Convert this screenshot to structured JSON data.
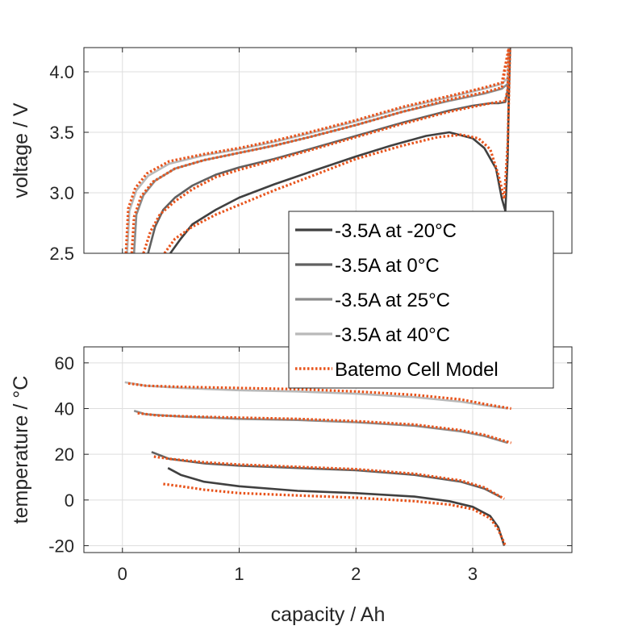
{
  "chart_data": [
    {
      "type": "line",
      "ylabel": "voltage / V",
      "xlabel": "",
      "xlim": [
        -0.33,
        3.85
      ],
      "ylim": [
        2.5,
        4.2
      ],
      "xticks": [
        "0",
        "1",
        "2",
        "3"
      ],
      "yticks": [
        "2.5",
        "3.0",
        "3.5",
        "4.0"
      ],
      "grid": true,
      "series": [
        {
          "name": "-3.5A at -20°C",
          "color": "#404040",
          "dash": "solid",
          "points": [
            [
              0.41,
              2.5
            ],
            [
              0.5,
              2.62
            ],
            [
              0.6,
              2.74
            ],
            [
              0.8,
              2.86
            ],
            [
              1.0,
              2.96
            ],
            [
              1.3,
              3.07
            ],
            [
              1.6,
              3.17
            ],
            [
              2.0,
              3.3
            ],
            [
              2.3,
              3.39
            ],
            [
              2.6,
              3.47
            ],
            [
              2.8,
              3.5
            ],
            [
              3.0,
              3.45
            ],
            [
              3.1,
              3.37
            ],
            [
              3.2,
              3.2
            ],
            [
              3.25,
              2.95
            ],
            [
              3.28,
              2.85
            ],
            [
              3.3,
              3.3
            ],
            [
              3.31,
              3.8
            ],
            [
              3.32,
              4.2
            ]
          ]
        },
        {
          "name": "-3.5A at 0°C",
          "color": "#606060",
          "dash": "solid",
          "points": [
            [
              0.22,
              2.5
            ],
            [
              0.28,
              2.72
            ],
            [
              0.35,
              2.86
            ],
            [
              0.45,
              2.96
            ],
            [
              0.6,
              3.06
            ],
            [
              0.8,
              3.15
            ],
            [
              1.0,
              3.21
            ],
            [
              1.3,
              3.28
            ],
            [
              1.6,
              3.36
            ],
            [
              2.0,
              3.47
            ],
            [
              2.4,
              3.58
            ],
            [
              2.8,
              3.68
            ],
            [
              3.0,
              3.72
            ],
            [
              3.15,
              3.74
            ],
            [
              3.22,
              3.74
            ],
            [
              3.28,
              3.75
            ],
            [
              3.3,
              3.85
            ],
            [
              3.31,
              4.2
            ]
          ]
        },
        {
          "name": "-3.5A at 25°C",
          "color": "#8c8c8c",
          "dash": "solid",
          "points": [
            [
              0.1,
              2.5
            ],
            [
              0.12,
              2.82
            ],
            [
              0.18,
              2.98
            ],
            [
              0.28,
              3.1
            ],
            [
              0.45,
              3.2
            ],
            [
              0.7,
              3.27
            ],
            [
              1.0,
              3.33
            ],
            [
              1.3,
              3.39
            ],
            [
              1.6,
              3.46
            ],
            [
              2.0,
              3.56
            ],
            [
              2.4,
              3.67
            ],
            [
              2.8,
              3.76
            ],
            [
              3.1,
              3.82
            ],
            [
              3.25,
              3.86
            ],
            [
              3.3,
              3.9
            ],
            [
              3.31,
              4.2
            ]
          ]
        },
        {
          "name": "-3.5A at 40°C",
          "color": "#b9b9b9",
          "dash": "solid",
          "points": [
            [
              0.04,
              2.5
            ],
            [
              0.06,
              2.85
            ],
            [
              0.12,
              3.02
            ],
            [
              0.22,
              3.14
            ],
            [
              0.4,
              3.24
            ],
            [
              0.7,
              3.31
            ],
            [
              1.0,
              3.36
            ],
            [
              1.3,
              3.42
            ],
            [
              1.6,
              3.49
            ],
            [
              2.0,
              3.59
            ],
            [
              2.4,
              3.7
            ],
            [
              2.8,
              3.79
            ],
            [
              3.1,
              3.86
            ],
            [
              3.25,
              3.9
            ],
            [
              3.3,
              3.95
            ],
            [
              3.31,
              4.2
            ]
          ]
        },
        {
          "name": "Batemo Cell Model",
          "color": "#e8541c",
          "dash": "dotted",
          "points": [
            [
              0.36,
              2.5
            ],
            [
              0.45,
              2.62
            ],
            [
              0.6,
              2.72
            ],
            [
              0.8,
              2.82
            ],
            [
              1.0,
              2.9
            ],
            [
              1.3,
              3.02
            ],
            [
              1.6,
              3.13
            ],
            [
              2.0,
              3.28
            ],
            [
              2.4,
              3.39
            ],
            [
              2.7,
              3.46
            ],
            [
              2.9,
              3.48
            ],
            [
              3.05,
              3.45
            ],
            [
              3.15,
              3.36
            ],
            [
              3.22,
              3.15
            ],
            [
              3.27,
              2.95
            ],
            [
              3.3,
              3.4
            ],
            [
              3.32,
              4.2
            ]
          ]
        },
        {
          "color": "#e8541c",
          "dash": "dotted",
          "points": [
            [
              0.18,
              2.5
            ],
            [
              0.24,
              2.68
            ],
            [
              0.32,
              2.82
            ],
            [
              0.45,
              2.93
            ],
            [
              0.6,
              3.03
            ],
            [
              0.8,
              3.13
            ],
            [
              1.0,
              3.19
            ],
            [
              1.3,
              3.27
            ],
            [
              1.6,
              3.35
            ],
            [
              2.0,
              3.46
            ],
            [
              2.4,
              3.57
            ],
            [
              2.8,
              3.67
            ],
            [
              3.0,
              3.71
            ],
            [
              3.15,
              3.74
            ],
            [
              3.28,
              3.76
            ],
            [
              3.3,
              3.86
            ],
            [
              3.31,
              4.2
            ]
          ]
        },
        {
          "color": "#e8541c",
          "dash": "dotted",
          "points": [
            [
              0.08,
              2.5
            ],
            [
              0.1,
              2.8
            ],
            [
              0.16,
              2.97
            ],
            [
              0.26,
              3.09
            ],
            [
              0.45,
              3.2
            ],
            [
              0.7,
              3.27
            ],
            [
              1.0,
              3.33
            ],
            [
              1.3,
              3.39
            ],
            [
              1.6,
              3.46
            ],
            [
              2.0,
              3.56
            ],
            [
              2.4,
              3.67
            ],
            [
              2.8,
              3.77
            ],
            [
              3.1,
              3.83
            ],
            [
              3.25,
              3.87
            ],
            [
              3.31,
              4.2
            ]
          ]
        },
        {
          "color": "#e8541c",
          "dash": "dotted",
          "points": [
            [
              0.03,
              2.5
            ],
            [
              0.05,
              2.87
            ],
            [
              0.11,
              3.04
            ],
            [
              0.21,
              3.16
            ],
            [
              0.4,
              3.26
            ],
            [
              0.7,
              3.32
            ],
            [
              1.0,
              3.37
            ],
            [
              1.3,
              3.43
            ],
            [
              1.6,
              3.5
            ],
            [
              2.0,
              3.6
            ],
            [
              2.4,
              3.71
            ],
            [
              2.8,
              3.8
            ],
            [
              3.1,
              3.87
            ],
            [
              3.25,
              3.91
            ],
            [
              3.31,
              4.2
            ]
          ]
        }
      ]
    },
    {
      "type": "line",
      "ylabel": "temperature / °C",
      "xlabel": "capacity / Ah",
      "xlim": [
        -0.33,
        3.85
      ],
      "ylim": [
        -23,
        67
      ],
      "xticks": [
        "0",
        "1",
        "2",
        "3"
      ],
      "yticks": [
        "-20",
        "0",
        "20",
        "40",
        "60"
      ],
      "grid": true,
      "series": [
        {
          "name": "-3.5A at -20°C",
          "color": "#404040",
          "dash": "solid",
          "points": [
            [
              0.39,
              14
            ],
            [
              0.5,
              11
            ],
            [
              0.7,
              8
            ],
            [
              1.0,
              6
            ],
            [
              1.5,
              4
            ],
            [
              2.0,
              3
            ],
            [
              2.5,
              1.5
            ],
            [
              2.8,
              -0.5
            ],
            [
              3.0,
              -3
            ],
            [
              3.15,
              -7
            ],
            [
              3.22,
              -12
            ],
            [
              3.27,
              -20
            ]
          ]
        },
        {
          "name": "-3.5A at 0°C",
          "color": "#606060",
          "dash": "solid",
          "points": [
            [
              0.25,
              21
            ],
            [
              0.4,
              18
            ],
            [
              0.7,
              16
            ],
            [
              1.0,
              15
            ],
            [
              1.5,
              14
            ],
            [
              2.0,
              13
            ],
            [
              2.5,
              11
            ],
            [
              2.9,
              8
            ],
            [
              3.1,
              5
            ],
            [
              3.25,
              1
            ]
          ]
        },
        {
          "name": "-3.5A at 25°C",
          "color": "#8c8c8c",
          "dash": "solid",
          "points": [
            [
              0.1,
              39
            ],
            [
              0.2,
              37.5
            ],
            [
              0.5,
              36.5
            ],
            [
              1.0,
              35.5
            ],
            [
              1.5,
              35
            ],
            [
              2.0,
              34
            ],
            [
              2.5,
              32.5
            ],
            [
              2.9,
              30
            ],
            [
              3.1,
              28
            ],
            [
              3.3,
              25
            ]
          ]
        },
        {
          "name": "-3.5A at 40°C",
          "color": "#b9b9b9",
          "dash": "solid",
          "points": [
            [
              0.02,
              51.5
            ],
            [
              0.2,
              50
            ],
            [
              0.5,
              49
            ],
            [
              1.0,
              48
            ],
            [
              1.5,
              47.5
            ],
            [
              2.0,
              46.5
            ],
            [
              2.5,
              45
            ],
            [
              2.9,
              43
            ],
            [
              3.1,
              41.5
            ],
            [
              3.3,
              40
            ]
          ]
        },
        {
          "name": "Batemo Cell Model",
          "color": "#e8541c",
          "dash": "dotted",
          "points": [
            [
              0.35,
              7
            ],
            [
              0.5,
              6
            ],
            [
              0.7,
              4.5
            ],
            [
              1.0,
              3
            ],
            [
              1.5,
              2
            ],
            [
              2.0,
              1
            ],
            [
              2.5,
              -0.5
            ],
            [
              2.8,
              -2
            ],
            [
              3.0,
              -4
            ],
            [
              3.15,
              -8
            ],
            [
              3.22,
              -13
            ],
            [
              3.28,
              -20
            ]
          ]
        },
        {
          "color": "#e8541c",
          "dash": "dotted",
          "points": [
            [
              0.27,
              19
            ],
            [
              0.4,
              18
            ],
            [
              0.7,
              16.5
            ],
            [
              1.0,
              15.5
            ],
            [
              1.5,
              14.5
            ],
            [
              2.0,
              13.5
            ],
            [
              2.5,
              11.5
            ],
            [
              2.9,
              8.5
            ],
            [
              3.1,
              5.5
            ],
            [
              3.27,
              0.5
            ]
          ]
        },
        {
          "color": "#e8541c",
          "dash": "dotted",
          "points": [
            [
              0.13,
              38
            ],
            [
              0.3,
              37
            ],
            [
              0.6,
              36.5
            ],
            [
              1.0,
              36
            ],
            [
              1.5,
              35.5
            ],
            [
              2.0,
              34.5
            ],
            [
              2.5,
              33
            ],
            [
              2.9,
              30.5
            ],
            [
              3.1,
              28.5
            ],
            [
              3.33,
              25
            ]
          ]
        },
        {
          "color": "#e8541c",
          "dash": "dotted",
          "points": [
            [
              0.05,
              51
            ],
            [
              0.2,
              50
            ],
            [
              0.5,
              49.5
            ],
            [
              1.0,
              49
            ],
            [
              1.5,
              48.5
            ],
            [
              2.0,
              47.5
            ],
            [
              2.5,
              46
            ],
            [
              2.9,
              44
            ],
            [
              3.1,
              42
            ],
            [
              3.33,
              40
            ]
          ]
        }
      ]
    }
  ],
  "legend": {
    "placement": "center-right",
    "entries": [
      {
        "label": "-3.5A at -20°C",
        "color": "#404040",
        "dash": "solid"
      },
      {
        "label": "-3.5A at 0°C",
        "color": "#606060",
        "dash": "solid"
      },
      {
        "label": "-3.5A at 25°C",
        "color": "#8c8c8c",
        "dash": "solid"
      },
      {
        "label": "-3.5A at 40°C",
        "color": "#b9b9b9",
        "dash": "solid"
      },
      {
        "label": "Batemo Cell Model",
        "color": "#e8541c",
        "dash": "dotted"
      }
    ]
  }
}
